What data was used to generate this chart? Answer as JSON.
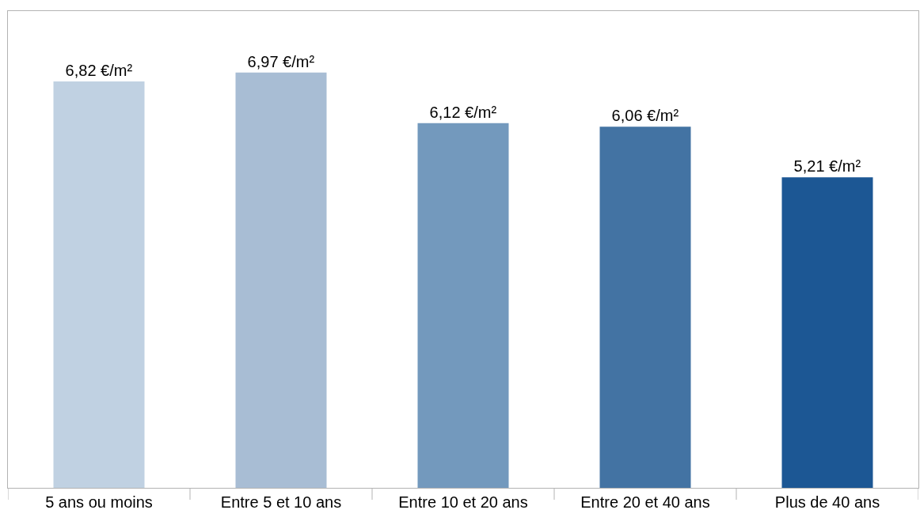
{
  "chart_data": {
    "type": "bar",
    "categories": [
      "5 ans ou moins",
      "Entre 5 et 10 ans",
      "Entre 10 et 20 ans",
      "Entre 20 et 40 ans",
      "Plus de 40 ans"
    ],
    "values": [
      6.82,
      6.97,
      6.12,
      6.06,
      5.21
    ],
    "value_labels": [
      "6,82 €/m²",
      "6,97 €/m²",
      "6,12 €/m²",
      "6,06 €/m²",
      "5,21 €/m²"
    ],
    "colors": [
      "#c0d1e2",
      "#a8bdd4",
      "#7399bd",
      "#4373a3",
      "#1c5794"
    ],
    "ylim": [
      0,
      8
    ],
    "tick_labels": "x",
    "legend": false
  }
}
